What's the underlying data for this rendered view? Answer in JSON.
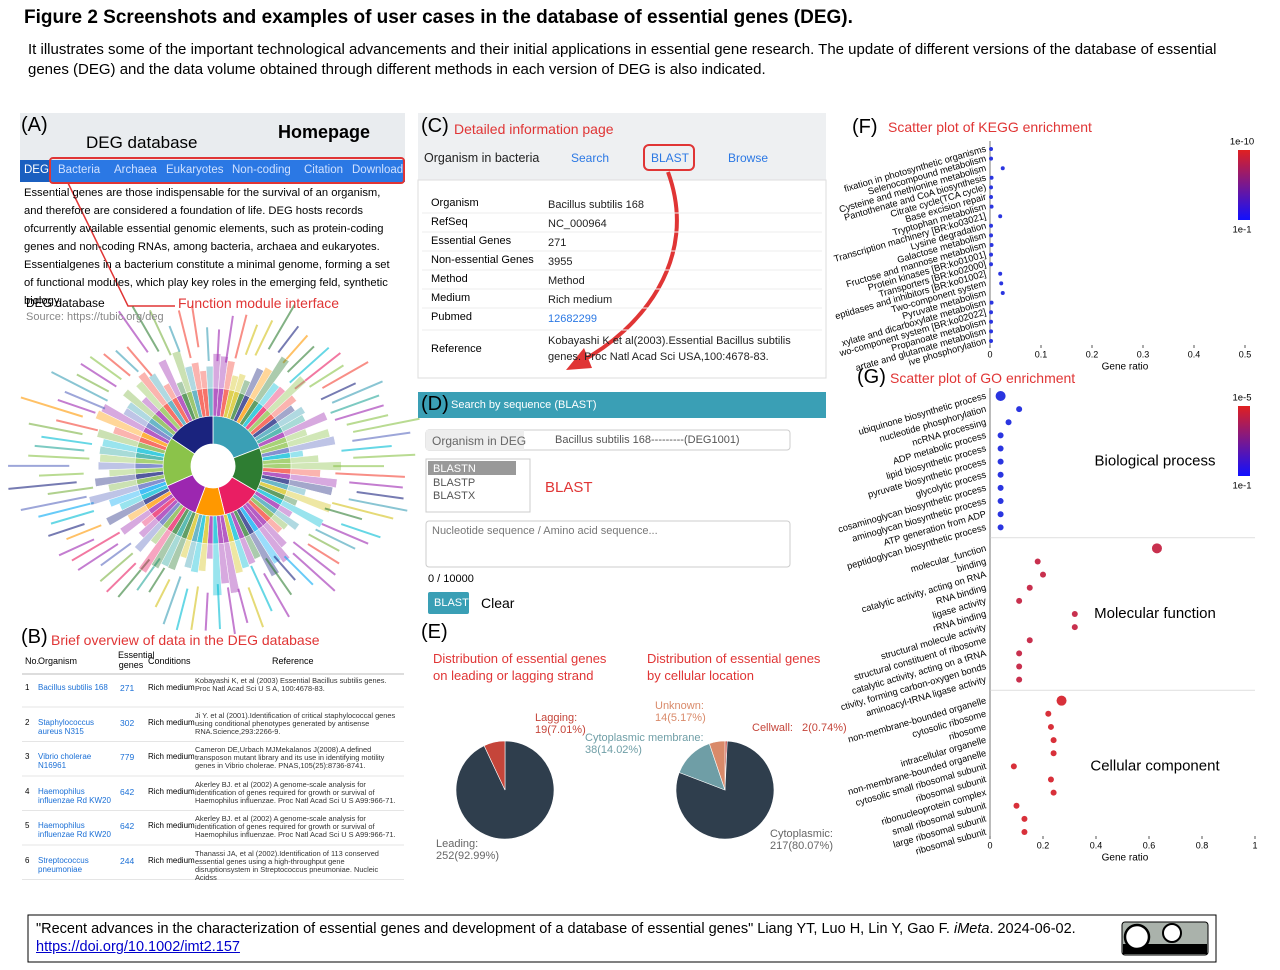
{
  "header": {
    "title": "Figure 2 Screenshots and examples of user cases in the database of essential genes (DEG).",
    "caption": "It illustrates some of the important technological advancements and their initial applications in essential gene research. The update of different versions of the database of essential genes (DEG) and the data volume obtained through different methods in each version of DEG is also indicated."
  },
  "panel_a": {
    "label": "(A)",
    "site": "DEG database",
    "page": "Homepage",
    "nav": [
      "DEG",
      "Bacteria",
      "Archaea",
      "Eukaryotes",
      "Non-coding",
      "Citation",
      "Download"
    ],
    "text": "Essential genes are those indispensable for the survival of an organism, and therefore are considered a foundation of life. DEG hosts records ofcurrently available essential genomic elements, such as protein-coding genes and non-coding RNAs, among bacteria, archaea and eukaryotes. Essentialgenes in a bacterium constitute a minimal genome, forming a set of functional modules, which play key roles in the emerging feld, synthetic biology.",
    "source_name": "DEG database",
    "source": "Source: https://tubic.org/deg",
    "annotation": "Function module interface"
  },
  "panel_b": {
    "label": "(B)",
    "title": "Brief overview of data in the DEG database",
    "columns": [
      "No.",
      "Organism",
      "Essential genes",
      "Conditions",
      "Reference"
    ],
    "rows": [
      [
        1,
        "Bacillus subtilis 168",
        271,
        "Rich medium",
        "Kobayashi K, et al (2003) Essential Bacillus subtilis genes. Proc Natl Acad Sci U S A, 100:4678-83."
      ],
      [
        2,
        "Staphylococcus aureus N315",
        302,
        "Rich medium",
        "Ji Y. et al (2001).Identification of critical staphylococcal genes using conditional phenotypes generated by antisense RNA.Science,293:2266-9."
      ],
      [
        3,
        "Vibrio cholerae N16961",
        779,
        "Rich medium",
        "Cameron DE,Urbach MJMekalanos J(2008).A defined transposon mutant library and its use in identifying motility genes in Vibrio cholerae. PNAS,105(25):8736-8741."
      ],
      [
        4,
        "Haemophilus influenzae Rd KW20",
        642,
        "Rich medium",
        "Akerley BJ. et al (2002) A genome-scale analysis for identification of genes required for growth or survival of Haemophilus influenzae. Proc Natl Acad Sci U S A99:966-71."
      ],
      [
        5,
        "Haemophilus influenzae Rd KW20",
        642,
        "Rich medium",
        "Akerley BJ. et al (2002) A genome-scale analysis for identification of genes required for growth or survival of Haemophilus influenzae. Proc Natl Acad Sci U S A99:966-71."
      ],
      [
        6,
        "Streptococcus pneumoniae",
        244,
        "Rich medium",
        "Thanassi JA, et al (2002).Identification of 113 conserved essential genes using a high-throughput gene disruptionsystem in Streptococcus pneumoniae. Nucleic Acidss"
      ]
    ]
  },
  "panel_c": {
    "label": "(C)",
    "title": "Detailed information page",
    "tabs": [
      "Organism in bacteria",
      "Search",
      "BLAST",
      "Browse"
    ],
    "rows": [
      [
        "Organism",
        "Bacillus subtilis 168"
      ],
      [
        "RefSeq",
        "NC_000964"
      ],
      [
        "Essential Genes",
        271
      ],
      [
        "Non-essential Genes",
        3955
      ],
      [
        "Method",
        "Method"
      ],
      [
        "Medium",
        "Rich medium"
      ],
      [
        "Pubmed",
        12682299
      ],
      [
        "Reference",
        "Kobayashi K et al(2003).Essential Bacillus subtilis genes. Proc Natl Acad Sci USA,100:4678-83."
      ]
    ]
  },
  "panel_d": {
    "label": "(D)",
    "title": "Search by sequence (BLAST)",
    "organism_label": "Organism in DEG",
    "organism": "Bacillus subtilis 168---------(DEG1001)",
    "programs": [
      "BLASTN",
      "BLASTP",
      "BLASTX"
    ],
    "annotation": "BLAST",
    "placeholder": "Nucleotide sequence / Amino acid sequence...",
    "counter": "0 / 10000",
    "buttons": [
      "BLAST",
      "Clear"
    ]
  },
  "panel_e": {
    "label": "(E)"
  },
  "panel_f": {
    "label": "(F)",
    "title": "Scatter plot of KEGG enrichment"
  },
  "panel_g": {
    "label": "(G)",
    "title": "Scatter plot of GO enrichment"
  },
  "footer": {
    "citation": "\"Recent advances in the characterization of essential genes and development of a database of essential genes\" Liang YT, Luo H, Lin Y, Gao F.",
    "journal": "iMeta",
    "date": ". 2024-06-02.",
    "doi": "https://doi.org/10.1002/imt2.157"
  },
  "chart_data": [
    {
      "type": "pie",
      "title": "Distribution of essential genes on leading or lagging strand",
      "categories": [
        "Leading:",
        "Lagging:"
      ],
      "values": [
        252,
        19
      ],
      "value_labels": [
        "252(92.99%)",
        "19(7.01%)"
      ],
      "colors": [
        "#2f3e4d",
        "#c5453a"
      ]
    },
    {
      "type": "pie",
      "title": "Distribution of essential genes by cellular location",
      "categories": [
        "Cellwall:",
        "Cytoplasmic:",
        "Cytoplasmic membrane:",
        "Unknown:"
      ],
      "values": [
        2,
        217,
        38,
        14
      ],
      "value_labels": [
        "2(0.74%)",
        "217(80.07%)",
        "38(14.02%)",
        "14(5.17%)"
      ],
      "colors": [
        "#c5453a",
        "#2f3e4d",
        "#6f9ea6",
        "#d98a6a"
      ]
    },
    {
      "type": "scatter",
      "x_label": "Gene ratio",
      "xlim": [
        0,
        0.5
      ],
      "xticks": [
        0,
        0.1,
        0.2,
        0.3,
        0.4,
        0.5
      ],
      "colorbar_labels": [
        "1e-10",
        "1e-1"
      ],
      "groups": [
        {
          "color": "#2a35e0",
          "categories": [
            "fixation in photosynthetic organisms",
            "Selenocompound metabolism",
            "Cysteine and methionine metabolism",
            "Pantothenate and CoA biosynthesis",
            "Citrate cycle(TCA cycle)",
            "Base excision repair",
            "Tryptophan metabolism",
            "Transcription machinery [BR:ko03021]",
            "Lysine degradation",
            "Galactose metabolism",
            "Fructose and mannose metabolism",
            "Protein kinases [BR:ko01001]",
            "Transporters [BR:ko02000]",
            "eptidases and inhibitors [BR:ko01002]",
            "Two-component system",
            "Pyruvate metabolism",
            "xylate and dicarboxylate metabolism",
            "wo-component system [BR:ko02022]",
            "Propanoate metabolism",
            "artate and glutamate metabolism",
            "ive phosphorylation"
          ],
          "values": [
            0.002,
            0.002,
            0.025,
            0.003,
            0.002,
            0.002,
            0.003,
            0.02,
            0.002,
            0.002,
            0.003,
            0.002,
            0.002,
            0.02,
            0.022,
            0.025,
            0.003,
            0.002,
            0.002,
            0.002,
            0.002
          ]
        }
      ]
    },
    {
      "type": "scatter",
      "x_label": "Gene ratio",
      "xlim": [
        0,
        1
      ],
      "xticks": [
        0,
        0.2,
        0.4,
        0.6,
        0.8,
        1
      ],
      "colorbar_labels": [
        "1e-5",
        "1e-1"
      ],
      "groups": [
        {
          "name": "Biological process",
          "color": "#2a35e0",
          "categories": [
            "ubiquinone biosynthetic process",
            "nucleotide phosphorylation",
            "ncRNA processing",
            "ADP metabolic process",
            "lipid biosynthetic process",
            "pyruvate biosynthetic process",
            "glycolytic process",
            "cosaminoglycan biosynthetic process",
            "aminoglycan biosynthetic process",
            "ATP generation from ADP",
            "peptidoglycan biosynthetic process"
          ],
          "values": [
            0.04,
            0.11,
            0.07,
            0.04,
            0.04,
            0.04,
            0.04,
            0.04,
            0.04,
            0.04,
            0.04
          ]
        },
        {
          "name": "Molecular function",
          "color": "#c8304e",
          "categories": [
            "molecular_function",
            "binding",
            "catalytic activity, acting on RNA",
            "RNA binding",
            "ligase activity",
            "rRNA binding",
            "structural molecule activity",
            "structural constituent of ribosome",
            "catalytic activity, acting on a tRNA",
            "ctivity, forming carbon-oxygen bonds",
            "aminoacyl-tRNA ligase activity"
          ],
          "values": [
            0.63,
            0.18,
            0.2,
            0.15,
            0.11,
            0.32,
            0.32,
            0.15,
            0.11,
            0.11,
            0.11
          ]
        },
        {
          "name": "Cellular component",
          "color": "#d8303a",
          "categories": [
            "non-membrane-bounded organelle",
            "cytosolic ribosome",
            "ribosome",
            "intracellular organelle",
            "non-membrane-bounded organelle",
            "cytosolic small ribosomal subunit",
            "ribosomal subunit",
            "ribonucleoprotein complex",
            "small ribosomal subunit",
            "large ribosomal subunit",
            "ribosomal subunit"
          ],
          "values": [
            0.27,
            0.22,
            0.23,
            0.24,
            0.24,
            0.09,
            0.23,
            0.24,
            0.1,
            0.13,
            0.13
          ]
        }
      ]
    }
  ]
}
